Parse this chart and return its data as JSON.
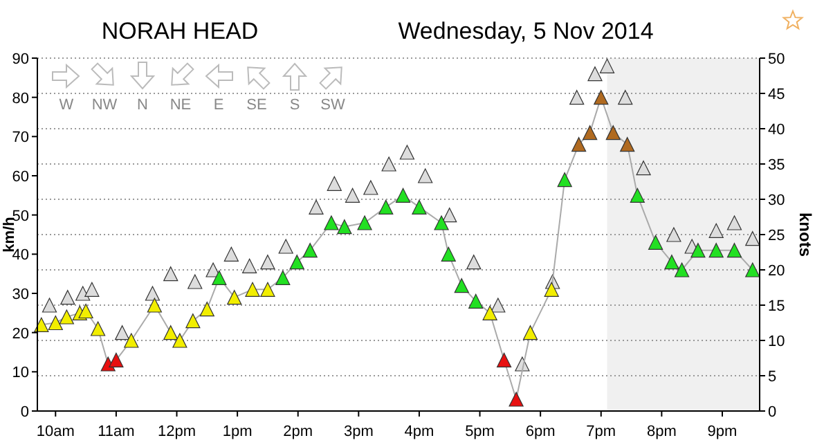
{
  "chart_data": {
    "type": "line",
    "title": "NORAH HEAD",
    "subtitle": "Wednesday, 5 Nov 2014",
    "ylabel": "km/h",
    "y2label": "knots",
    "annotations": [
      "W",
      "NW",
      "N",
      "NE",
      "E",
      "SE",
      "S",
      "SW"
    ],
    "xlim": [
      "2014-11-05T09:42",
      "2014-11-05T21:37"
    ],
    "xticks": [
      {
        "value": "2014-11-05T10:00",
        "label": "10am"
      },
      {
        "value": "2014-11-05T11:00",
        "label": "11am"
      },
      {
        "value": "2014-11-05T12:00",
        "label": "12pm"
      },
      {
        "value": "2014-11-05T13:00",
        "label": "1pm"
      },
      {
        "value": "2014-11-05T14:00",
        "label": "2pm"
      },
      {
        "value": "2014-11-05T15:00",
        "label": "3pm"
      },
      {
        "value": "2014-11-05T16:00",
        "label": "4pm"
      },
      {
        "value": "2014-11-05T17:00",
        "label": "5pm"
      },
      {
        "value": "2014-11-05T18:00",
        "label": "6pm"
      },
      {
        "value": "2014-11-05T19:00",
        "label": "7pm"
      },
      {
        "value": "2014-11-05T20:00",
        "label": "8pm"
      },
      {
        "value": "2014-11-05T21:00",
        "label": "9pm"
      }
    ],
    "ylim": [
      0,
      90
    ],
    "yticks": [
      0,
      10,
      20,
      30,
      40,
      50,
      60,
      70,
      80,
      90
    ],
    "y2lim": [
      0,
      50
    ],
    "y2ticks": [
      0,
      5,
      10,
      15,
      20,
      25,
      30,
      35,
      40,
      45,
      50
    ],
    "grid": "y",
    "marker": "triangle",
    "line_style": "solid",
    "bands": [
      {
        "axis": "x",
        "from": "2014-11-05T19:06",
        "to": "2014-11-05T21:37",
        "color": "#f0f0f0"
      }
    ],
    "series": [
      {
        "type": "scatter",
        "color": "#dddddd",
        "x": [
          "2014-11-05T09:54",
          "2014-11-05T10:12",
          "2014-11-05T10:27",
          "2014-11-05T10:36",
          "2014-11-05T11:06",
          "2014-11-05T11:36",
          "2014-11-05T11:54",
          "2014-11-05T12:18",
          "2014-11-05T12:36",
          "2014-11-05T12:54",
          "2014-11-05T13:12",
          "2014-11-05T13:30",
          "2014-11-05T13:48",
          "2014-11-05T14:18",
          "2014-11-05T14:36",
          "2014-11-05T14:54",
          "2014-11-05T15:12",
          "2014-11-05T15:30",
          "2014-11-05T15:48",
          "2014-11-05T16:06",
          "2014-11-05T16:30",
          "2014-11-05T16:54",
          "2014-11-05T17:18",
          "2014-11-05T17:42",
          "2014-11-05T18:12",
          "2014-11-05T18:36",
          "2014-11-05T18:54",
          "2014-11-05T19:06",
          "2014-11-05T19:24",
          "2014-11-05T19:42",
          "2014-11-05T20:12",
          "2014-11-05T20:30",
          "2014-11-05T20:54",
          "2014-11-05T21:12",
          "2014-11-05T21:30"
        ],
        "values": [
          27,
          29,
          30,
          31,
          20,
          30,
          35,
          33,
          36,
          40,
          37,
          38,
          42,
          52,
          58,
          55,
          57,
          63,
          66,
          60,
          50,
          38,
          27,
          12,
          33,
          80,
          86,
          88,
          80,
          62,
          45,
          42,
          46,
          48,
          44
        ]
      },
      {
        "color": "#aaaaaa",
        "x": [
          "2014-11-05T09:46",
          "2014-11-05T10:00",
          "2014-11-05T10:11",
          "2014-11-05T10:24",
          "2014-11-05T10:30",
          "2014-11-05T10:42",
          "2014-11-05T10:52",
          "2014-11-05T11:00",
          "2014-11-05T11:15",
          "2014-11-05T11:38",
          "2014-11-05T11:54",
          "2014-11-05T12:03",
          "2014-11-05T12:16",
          "2014-11-05T12:30",
          "2014-11-05T12:42",
          "2014-11-05T12:57",
          "2014-11-05T13:15",
          "2014-11-05T13:30",
          "2014-11-05T13:45",
          "2014-11-05T13:59",
          "2014-11-05T14:12",
          "2014-11-05T14:33",
          "2014-11-05T14:46",
          "2014-11-05T15:06",
          "2014-11-05T15:27",
          "2014-11-05T15:44",
          "2014-11-05T16:00",
          "2014-11-05T16:22",
          "2014-11-05T16:29",
          "2014-11-05T16:42",
          "2014-11-05T16:56",
          "2014-11-05T17:10",
          "2014-11-05T17:24",
          "2014-11-05T17:36",
          "2014-11-05T17:50",
          "2014-11-05T18:11",
          "2014-11-05T18:24",
          "2014-11-05T18:38",
          "2014-11-05T18:49",
          "2014-11-05T19:00",
          "2014-11-05T19:12",
          "2014-11-05T19:26",
          "2014-11-05T19:36",
          "2014-11-05T19:54",
          "2014-11-05T20:10",
          "2014-11-05T20:20",
          "2014-11-05T20:36",
          "2014-11-05T20:54",
          "2014-11-05T21:12",
          "2014-11-05T21:30"
        ],
        "values": [
          22,
          22.5,
          24,
          25,
          25.5,
          21,
          12,
          13,
          18,
          27,
          20,
          18,
          23,
          26,
          34,
          29,
          31,
          31,
          34,
          38,
          41,
          48,
          47,
          48,
          52,
          55,
          52,
          48,
          40,
          32,
          28,
          25,
          13,
          3,
          20,
          31,
          59,
          68,
          71,
          80,
          71,
          68,
          55,
          43,
          38,
          36,
          41,
          41,
          41,
          36
        ],
        "colors": [
          "#f2ee00",
          "#f2ee00",
          "#f2ee00",
          "#f2ee00",
          "#f2ee00",
          "#f2ee00",
          "#e81010",
          "#e81010",
          "#f2ee00",
          "#f2ee00",
          "#f2ee00",
          "#f2ee00",
          "#f2ee00",
          "#f2ee00",
          "#22e022",
          "#f2ee00",
          "#f2ee00",
          "#f2ee00",
          "#22e022",
          "#22e022",
          "#22e022",
          "#22e022",
          "#22e022",
          "#22e022",
          "#22e022",
          "#22e022",
          "#22e022",
          "#22e022",
          "#22e022",
          "#22e022",
          "#22e022",
          "#f2ee00",
          "#e81010",
          "#e81010",
          "#f2ee00",
          "#f2ee00",
          "#22e022",
          "#b06a20",
          "#b06a20",
          "#b06a20",
          "#b06a20",
          "#b06a20",
          "#22e022",
          "#22e022",
          "#22e022",
          "#22e022",
          "#22e022",
          "#22e022",
          "#22e022",
          "#22e022"
        ]
      }
    ]
  }
}
